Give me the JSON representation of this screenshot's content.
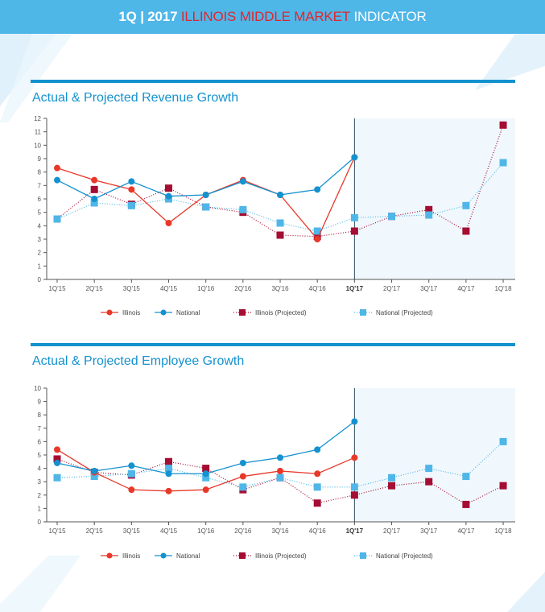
{
  "header": {
    "prefix": "1Q | 2017",
    "highlight": "ILLINOIS MIDDLE MARKET",
    "suffix": "INDICATOR"
  },
  "colors": {
    "illinois": "#e8382a",
    "national": "#1492cf",
    "illinois_projected": "#a50d33",
    "national_projected": "#4fb6e8",
    "projection_shade": "#f0f8fd"
  },
  "chart_data": [
    {
      "type": "line",
      "title": "Actual & Projected Revenue Growth",
      "categories": [
        "1Q'15",
        "2Q'15",
        "3Q'15",
        "4Q'15",
        "1Q'16",
        "2Q'16",
        "3Q'16",
        "4Q'16",
        "1Q'17",
        "2Q'17",
        "3Q'17",
        "4Q'17",
        "1Q'18"
      ],
      "highlight_category": "1Q'17",
      "ylim": [
        0,
        12
      ],
      "yticks": [
        0,
        1,
        2,
        3,
        4,
        5,
        6,
        7,
        8,
        9,
        10,
        11,
        12
      ],
      "grid": false,
      "legend_placement": "bottom",
      "series": [
        {
          "name": "Illinois",
          "style": "solid-circle",
          "values": [
            8.3,
            7.4,
            6.7,
            4.2,
            6.3,
            7.4,
            6.3,
            3.0,
            9.1,
            null,
            null,
            null,
            null
          ]
        },
        {
          "name": "National",
          "style": "solid-circle",
          "values": [
            7.4,
            6.0,
            7.3,
            6.2,
            6.3,
            7.3,
            6.3,
            6.7,
            9.1,
            null,
            null,
            null,
            null
          ]
        },
        {
          "name": "Illinois (Projected)",
          "style": "dotted-square",
          "values": [
            4.5,
            6.7,
            5.6,
            6.8,
            5.4,
            5.0,
            3.3,
            3.2,
            3.6,
            4.7,
            5.2,
            3.6,
            11.5
          ]
        },
        {
          "name": "National (Projected)",
          "style": "dotted-square",
          "values": [
            4.5,
            5.7,
            5.5,
            6.0,
            5.4,
            5.2,
            4.2,
            3.6,
            4.6,
            4.7,
            4.8,
            5.5,
            8.7
          ]
        }
      ]
    },
    {
      "type": "line",
      "title": "Actual & Projected Employee Growth",
      "categories": [
        "1Q'15",
        "2Q'15",
        "3Q'15",
        "4Q'15",
        "1Q'16",
        "2Q'16",
        "3Q'16",
        "4Q'16",
        "1Q'17",
        "2Q'17",
        "3Q'17",
        "4Q'17",
        "1Q'18"
      ],
      "highlight_category": "1Q'17",
      "ylim": [
        0,
        10
      ],
      "yticks": [
        0,
        1,
        2,
        3,
        4,
        5,
        6,
        7,
        8,
        9,
        10
      ],
      "grid": false,
      "legend_placement": "bottom",
      "series": [
        {
          "name": "Illinois",
          "style": "solid-circle",
          "values": [
            5.4,
            3.7,
            2.4,
            2.3,
            2.4,
            3.4,
            3.8,
            3.6,
            4.8,
            null,
            null,
            null,
            null
          ]
        },
        {
          "name": "National",
          "style": "solid-circle",
          "values": [
            4.4,
            3.8,
            4.2,
            3.6,
            3.6,
            4.4,
            4.8,
            5.4,
            7.5,
            null,
            null,
            null,
            null
          ]
        },
        {
          "name": "Illinois (Projected)",
          "style": "dotted-square",
          "values": [
            4.7,
            3.7,
            3.5,
            4.5,
            4.0,
            2.4,
            3.3,
            1.4,
            2.0,
            2.7,
            3.0,
            1.3,
            2.7
          ]
        },
        {
          "name": "National (Projected)",
          "style": "dotted-square",
          "values": [
            3.3,
            3.4,
            3.6,
            4.0,
            3.3,
            2.6,
            3.3,
            2.6,
            2.6,
            3.3,
            4.0,
            3.4,
            6.0
          ]
        }
      ]
    }
  ]
}
